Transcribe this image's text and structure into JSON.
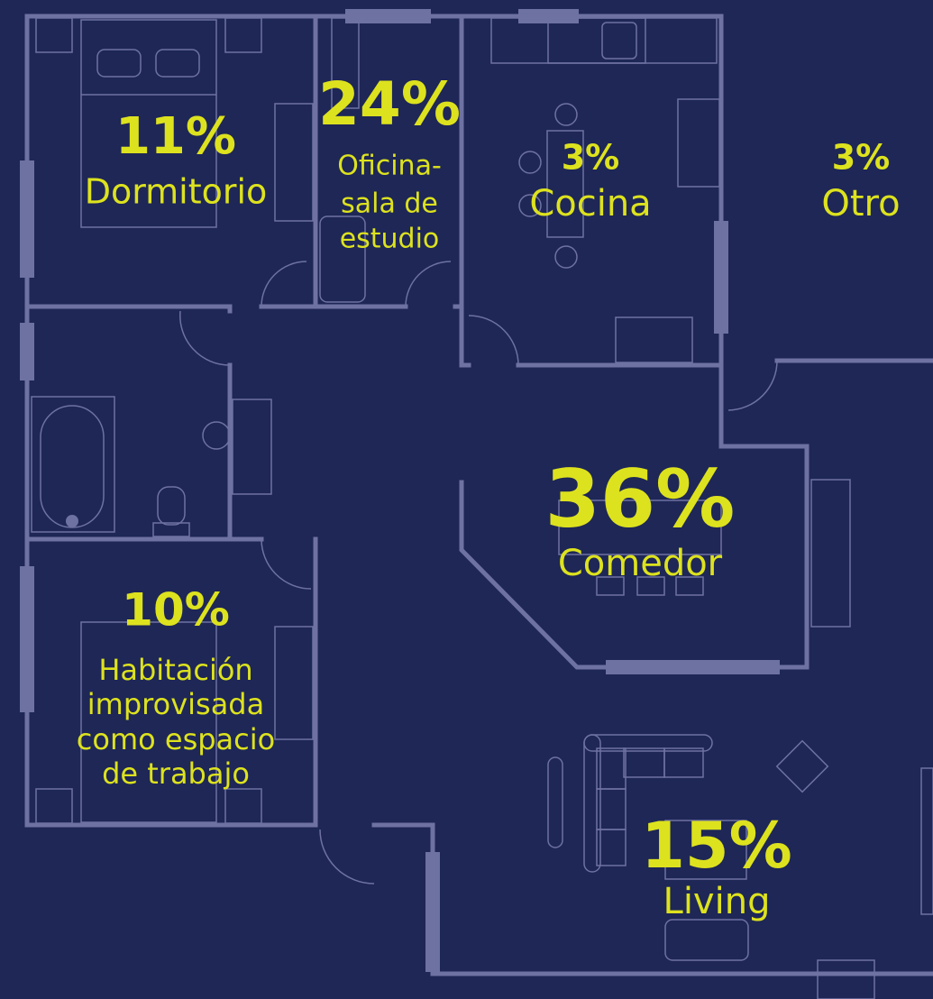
{
  "rooms": [
    {
      "percent": "11%",
      "label": [
        "Dormitorio"
      ]
    },
    {
      "percent": "24%",
      "label": [
        "Oficina-",
        "sala de",
        "estudio"
      ]
    },
    {
      "percent": "3%",
      "label": [
        "Cocina"
      ]
    },
    {
      "percent": "3%",
      "label": [
        "Otro"
      ]
    },
    {
      "percent": "36%",
      "label": [
        "Comedor"
      ]
    },
    {
      "percent": "10%",
      "label": [
        "Habitación",
        "improvisada",
        "como espacio",
        "de trabajo"
      ]
    },
    {
      "percent": "15%",
      "label": [
        "Living"
      ]
    }
  ]
}
